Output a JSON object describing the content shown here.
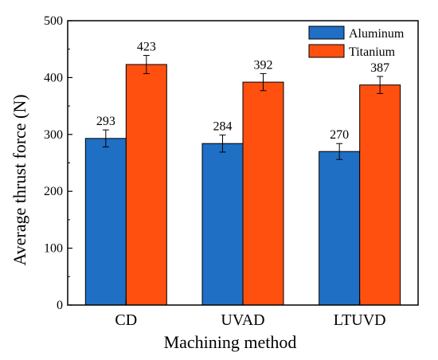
{
  "chart_data": {
    "type": "bar",
    "title": "",
    "xlabel": "Machining method",
    "ylabel": "Average thrust force (N)",
    "ylim": [
      0,
      500
    ],
    "yticks": [
      0,
      100,
      200,
      300,
      400,
      500
    ],
    "categories": [
      "CD",
      "UVAD",
      "LTUVD"
    ],
    "series": [
      {
        "name": "Aluminum",
        "color": "#1f6fc4",
        "values": [
          293,
          284,
          270
        ],
        "errors": [
          15,
          15,
          14
        ],
        "labels": [
          "293",
          "284",
          "270"
        ]
      },
      {
        "name": "Titanium",
        "color": "#ff5010",
        "values": [
          423,
          392,
          387
        ],
        "errors": [
          16,
          15,
          15
        ],
        "labels": [
          "423",
          "392",
          "387"
        ]
      }
    ],
    "legend": "top-right",
    "grid": false
  }
}
